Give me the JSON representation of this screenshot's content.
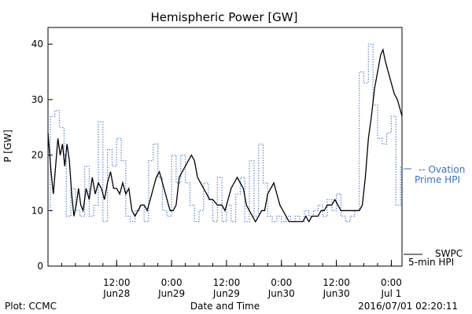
{
  "chart_data": {
    "type": "line",
    "title": "Hemispheric Power [GW]",
    "xlabel": "Date and Time",
    "ylabel": "P [GW]",
    "ylim": [
      0,
      43
    ],
    "xlim": [
      "2016-06-27T21:00",
      "2016-07-01T02:20"
    ],
    "yticks": [
      0,
      10,
      20,
      30,
      40
    ],
    "xticks": [
      {
        "time": "2016-06-28T12:00",
        "label1": "12:00",
        "label2": "Jun28"
      },
      {
        "time": "2016-06-29T00:00",
        "label1": "0:00",
        "label2": "Jun29"
      },
      {
        "time": "2016-06-29T12:00",
        "label1": "12:00",
        "label2": "Jun29"
      },
      {
        "time": "2016-06-30T00:00",
        "label1": "0:00",
        "label2": "Jun30"
      },
      {
        "time": "2016-06-30T12:00",
        "label1": "12:00",
        "label2": "Jun30"
      },
      {
        "time": "2016-07-01T00:00",
        "label1": "0:00",
        "label2": "Jul 1"
      }
    ],
    "grid": false,
    "legend_position": "right",
    "series": [
      {
        "name_line1": "SWPC",
        "name_line2": "5-min HPI",
        "color": "#000000",
        "style": "solid",
        "points": [
          [
            "2016-06-27T21:00",
            24
          ],
          [
            "2016-06-27T21:40",
            17
          ],
          [
            "2016-06-27T22:10",
            13
          ],
          [
            "2016-06-27T22:40",
            18
          ],
          [
            "2016-06-27T23:10",
            23
          ],
          [
            "2016-06-27T23:40",
            20
          ],
          [
            "2016-06-28T00:10",
            22
          ],
          [
            "2016-06-28T00:40",
            18
          ],
          [
            "2016-06-28T01:10",
            22
          ],
          [
            "2016-06-28T01:40",
            19
          ],
          [
            "2016-06-28T02:10",
            13
          ],
          [
            "2016-06-28T02:40",
            9
          ],
          [
            "2016-06-28T03:10",
            11
          ],
          [
            "2016-06-28T03:40",
            14
          ],
          [
            "2016-06-28T04:10",
            11
          ],
          [
            "2016-06-28T04:40",
            10
          ],
          [
            "2016-06-28T05:20",
            14
          ],
          [
            "2016-06-28T06:00",
            12
          ],
          [
            "2016-06-28T06:40",
            16
          ],
          [
            "2016-06-28T07:20",
            13
          ],
          [
            "2016-06-28T08:00",
            15
          ],
          [
            "2016-06-28T08:40",
            14
          ],
          [
            "2016-06-28T09:20",
            12
          ],
          [
            "2016-06-28T10:00",
            15
          ],
          [
            "2016-06-28T10:40",
            17
          ],
          [
            "2016-06-28T11:20",
            14
          ],
          [
            "2016-06-28T12:00",
            14
          ],
          [
            "2016-06-28T12:40",
            13
          ],
          [
            "2016-06-28T13:20",
            15
          ],
          [
            "2016-06-28T14:00",
            13
          ],
          [
            "2016-06-28T14:40",
            14
          ],
          [
            "2016-06-28T15:20",
            10
          ],
          [
            "2016-06-28T16:00",
            9
          ],
          [
            "2016-06-28T16:40",
            10
          ],
          [
            "2016-06-28T17:20",
            11
          ],
          [
            "2016-06-28T18:00",
            11
          ],
          [
            "2016-06-28T18:40",
            10
          ],
          [
            "2016-06-28T19:20",
            12
          ],
          [
            "2016-06-28T20:00",
            14
          ],
          [
            "2016-06-28T20:40",
            16
          ],
          [
            "2016-06-28T21:20",
            17
          ],
          [
            "2016-06-28T22:00",
            15
          ],
          [
            "2016-06-28T22:40",
            13
          ],
          [
            "2016-06-28T23:20",
            11
          ],
          [
            "2016-06-28T23:40",
            10
          ],
          [
            "2016-06-29T00:20",
            10
          ],
          [
            "2016-06-29T01:00",
            11
          ],
          [
            "2016-06-29T01:40",
            16
          ],
          [
            "2016-06-29T02:20",
            17
          ],
          [
            "2016-06-29T03:00",
            18
          ],
          [
            "2016-06-29T03:40",
            19
          ],
          [
            "2016-06-29T04:20",
            20
          ],
          [
            "2016-06-29T05:00",
            19
          ],
          [
            "2016-06-29T05:40",
            16
          ],
          [
            "2016-06-29T06:20",
            15
          ],
          [
            "2016-06-29T07:00",
            14
          ],
          [
            "2016-06-29T07:40",
            13
          ],
          [
            "2016-06-29T08:20",
            12
          ],
          [
            "2016-06-29T09:00",
            12
          ],
          [
            "2016-06-29T10:00",
            11
          ],
          [
            "2016-06-29T11:00",
            11
          ],
          [
            "2016-06-29T11:40",
            10
          ],
          [
            "2016-06-29T12:20",
            12
          ],
          [
            "2016-06-29T13:00",
            14
          ],
          [
            "2016-06-29T13:40",
            15
          ],
          [
            "2016-06-29T14:20",
            16
          ],
          [
            "2016-06-29T15:00",
            15
          ],
          [
            "2016-06-29T15:40",
            14
          ],
          [
            "2016-06-29T16:20",
            11
          ],
          [
            "2016-06-29T17:00",
            10
          ],
          [
            "2016-06-29T17:40",
            9
          ],
          [
            "2016-06-29T18:20",
            8
          ],
          [
            "2016-06-29T19:00",
            9
          ],
          [
            "2016-06-29T19:40",
            10
          ],
          [
            "2016-06-29T20:20",
            10
          ],
          [
            "2016-06-29T21:00",
            13
          ],
          [
            "2016-06-29T21:40",
            14
          ],
          [
            "2016-06-29T22:20",
            15
          ],
          [
            "2016-06-29T23:00",
            13
          ],
          [
            "2016-06-29T23:40",
            11
          ],
          [
            "2016-06-30T00:20",
            10
          ],
          [
            "2016-06-30T01:00",
            9
          ],
          [
            "2016-06-30T01:40",
            8
          ],
          [
            "2016-06-30T02:40",
            8
          ],
          [
            "2016-06-30T03:40",
            8
          ],
          [
            "2016-06-30T04:40",
            8
          ],
          [
            "2016-06-30T05:20",
            9
          ],
          [
            "2016-06-30T06:00",
            8
          ],
          [
            "2016-06-30T06:40",
            9
          ],
          [
            "2016-06-30T07:20",
            9
          ],
          [
            "2016-06-30T08:00",
            9
          ],
          [
            "2016-06-30T08:40",
            10
          ],
          [
            "2016-06-30T09:20",
            10
          ],
          [
            "2016-06-30T10:00",
            11
          ],
          [
            "2016-06-30T11:00",
            11
          ],
          [
            "2016-06-30T11:40",
            12
          ],
          [
            "2016-06-30T12:20",
            11
          ],
          [
            "2016-06-30T13:00",
            10
          ],
          [
            "2016-06-30T14:00",
            10
          ],
          [
            "2016-06-30T15:00",
            10
          ],
          [
            "2016-06-30T16:00",
            10
          ],
          [
            "2016-06-30T17:00",
            10
          ],
          [
            "2016-06-30T17:40",
            11
          ],
          [
            "2016-06-30T18:20",
            16
          ],
          [
            "2016-06-30T19:00",
            23
          ],
          [
            "2016-06-30T19:40",
            27
          ],
          [
            "2016-06-30T20:20",
            32
          ],
          [
            "2016-06-30T21:00",
            35
          ],
          [
            "2016-06-30T21:40",
            38
          ],
          [
            "2016-06-30T22:10",
            39
          ],
          [
            "2016-06-30T22:40",
            37
          ],
          [
            "2016-06-30T23:20",
            35
          ],
          [
            "2016-07-01T00:00",
            33
          ],
          [
            "2016-07-01T00:40",
            31
          ],
          [
            "2016-07-01T01:20",
            30
          ],
          [
            "2016-07-01T02:00",
            28
          ],
          [
            "2016-07-01T02:20",
            27
          ]
        ]
      },
      {
        "name_line1": "-- Ovation",
        "name_line2": "Prime HPI",
        "color": "#3d6fc2",
        "style": "dotted-step",
        "points": [
          [
            "2016-06-27T21:00",
            10
          ],
          [
            "2016-06-27T21:30",
            27
          ],
          [
            "2016-06-27T22:30",
            28
          ],
          [
            "2016-06-27T23:30",
            25
          ],
          [
            "2016-06-28T00:30",
            20
          ],
          [
            "2016-06-28T01:00",
            9
          ],
          [
            "2016-06-28T02:00",
            14
          ],
          [
            "2016-06-28T03:00",
            10
          ],
          [
            "2016-06-28T04:00",
            9
          ],
          [
            "2016-06-28T05:00",
            18
          ],
          [
            "2016-06-28T06:00",
            9
          ],
          [
            "2016-06-28T07:00",
            11
          ],
          [
            "2016-06-28T08:00",
            26
          ],
          [
            "2016-06-28T09:00",
            8
          ],
          [
            "2016-06-28T10:00",
            21
          ],
          [
            "2016-06-28T11:00",
            18
          ],
          [
            "2016-06-28T12:00",
            23
          ],
          [
            "2016-06-28T13:00",
            19
          ],
          [
            "2016-06-28T14:00",
            9
          ],
          [
            "2016-06-28T15:00",
            8
          ],
          [
            "2016-06-28T16:00",
            10
          ],
          [
            "2016-06-28T17:00",
            11
          ],
          [
            "2016-06-28T18:00",
            8
          ],
          [
            "2016-06-28T19:00",
            19
          ],
          [
            "2016-06-28T20:00",
            22
          ],
          [
            "2016-06-28T21:00",
            16
          ],
          [
            "2016-06-28T22:00",
            10
          ],
          [
            "2016-06-28T23:00",
            9
          ],
          [
            "2016-06-29T00:00",
            20
          ],
          [
            "2016-06-29T01:00",
            15
          ],
          [
            "2016-06-29T02:00",
            20
          ],
          [
            "2016-06-29T03:00",
            15
          ],
          [
            "2016-06-29T04:00",
            11
          ],
          [
            "2016-06-29T05:00",
            8
          ],
          [
            "2016-06-29T06:00",
            10
          ],
          [
            "2016-06-29T07:00",
            15
          ],
          [
            "2016-06-29T08:00",
            12
          ],
          [
            "2016-06-29T09:00",
            8
          ],
          [
            "2016-06-29T10:00",
            16
          ],
          [
            "2016-06-29T11:00",
            8
          ],
          [
            "2016-06-29T12:00",
            11
          ],
          [
            "2016-06-29T13:00",
            8
          ],
          [
            "2016-06-29T14:00",
            13
          ],
          [
            "2016-06-29T15:00",
            16
          ],
          [
            "2016-06-29T16:00",
            8
          ],
          [
            "2016-06-29T17:00",
            19
          ],
          [
            "2016-06-29T18:00",
            9
          ],
          [
            "2016-06-29T19:00",
            22
          ],
          [
            "2016-06-29T20:00",
            15
          ],
          [
            "2016-06-29T21:00",
            9
          ],
          [
            "2016-06-29T22:00",
            8
          ],
          [
            "2016-06-29T23:00",
            9
          ],
          [
            "2016-06-30T00:00",
            8
          ],
          [
            "2016-06-30T01:00",
            9
          ],
          [
            "2016-06-30T02:00",
            8
          ],
          [
            "2016-06-30T03:00",
            9
          ],
          [
            "2016-06-30T04:00",
            8
          ],
          [
            "2016-06-30T05:00",
            10
          ],
          [
            "2016-06-30T06:00",
            9
          ],
          [
            "2016-06-30T07:00",
            10
          ],
          [
            "2016-06-30T08:00",
            11
          ],
          [
            "2016-06-30T09:00",
            9
          ],
          [
            "2016-06-30T10:00",
            12
          ],
          [
            "2016-06-30T11:00",
            10
          ],
          [
            "2016-06-30T12:00",
            13
          ],
          [
            "2016-06-30T13:00",
            9
          ],
          [
            "2016-06-30T14:00",
            8
          ],
          [
            "2016-06-30T15:00",
            9
          ],
          [
            "2016-06-30T16:00",
            10
          ],
          [
            "2016-06-30T17:00",
            35
          ],
          [
            "2016-06-30T18:00",
            33
          ],
          [
            "2016-06-30T19:00",
            40
          ],
          [
            "2016-06-30T20:00",
            29
          ],
          [
            "2016-06-30T21:00",
            23
          ],
          [
            "2016-06-30T22:00",
            22
          ],
          [
            "2016-06-30T23:00",
            24
          ],
          [
            "2016-07-01T00:00",
            27
          ],
          [
            "2016-07-01T01:00",
            11
          ],
          [
            "2016-07-01T02:00",
            18
          ],
          [
            "2016-07-01T02:20",
            18
          ]
        ]
      }
    ]
  },
  "footer": {
    "left": "Plot: CCMC",
    "right": "2016/07/01 02:20:11"
  }
}
